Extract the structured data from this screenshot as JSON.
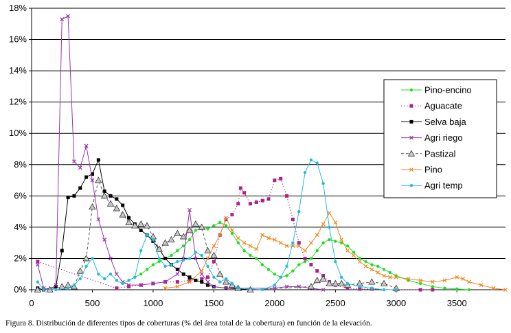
{
  "caption": "Figura 8.  Distribución de diferentes tipos de coberturas (% del área total de la cobertura) en función de la elevación.",
  "chart_data": {
    "type": "line",
    "title": "",
    "xlabel": "",
    "ylabel": "",
    "xlim": [
      0,
      3900
    ],
    "ylim": [
      0,
      18
    ],
    "x_ticks": [
      0,
      500,
      1000,
      1500,
      2000,
      2500,
      3000,
      3500
    ],
    "x_tick_labels": [
      "0",
      "500",
      "1000",
      "1500",
      "2000",
      "2500",
      "3000",
      "3500"
    ],
    "y_ticks": [
      0,
      2,
      4,
      6,
      8,
      10,
      12,
      14,
      16,
      18
    ],
    "y_tick_labels": [
      "0%",
      "2%",
      "4%",
      "6%",
      "8%",
      "10%",
      "12%",
      "14%",
      "16%",
      "18%"
    ],
    "grid": "horizontal",
    "legend_position": "right",
    "series": [
      {
        "name": "Pino-encino",
        "color": "#22dd22",
        "marker": "dot",
        "dash": "solid",
        "points": [
          [
            800,
            0.6
          ],
          [
            850,
            0.8
          ],
          [
            900,
            1.0
          ],
          [
            950,
            1.3
          ],
          [
            1000,
            1.6
          ],
          [
            1050,
            1.8
          ],
          [
            1100,
            2.0
          ],
          [
            1150,
            2.2
          ],
          [
            1200,
            2.5
          ],
          [
            1250,
            2.8
          ],
          [
            1300,
            3.2
          ],
          [
            1350,
            3.8
          ],
          [
            1400,
            3.9
          ],
          [
            1450,
            3.9
          ],
          [
            1500,
            4.1
          ],
          [
            1550,
            4.3
          ],
          [
            1600,
            4.1
          ],
          [
            1650,
            3.6
          ],
          [
            1700,
            3.0
          ],
          [
            1750,
            2.5
          ],
          [
            1800,
            2.2
          ],
          [
            1850,
            2.0
          ],
          [
            1900,
            1.6
          ],
          [
            1950,
            1.3
          ],
          [
            2000,
            1.0
          ],
          [
            2050,
            0.8
          ],
          [
            2100,
            0.9
          ],
          [
            2150,
            1.2
          ],
          [
            2200,
            1.6
          ],
          [
            2250,
            1.8
          ],
          [
            2300,
            2.0
          ],
          [
            2350,
            2.5
          ],
          [
            2400,
            3.0
          ],
          [
            2450,
            3.2
          ],
          [
            2500,
            3.1
          ],
          [
            2550,
            3.0
          ],
          [
            2600,
            2.8
          ],
          [
            2650,
            2.4
          ],
          [
            2700,
            2.0
          ],
          [
            2750,
            1.8
          ],
          [
            2800,
            1.6
          ],
          [
            2850,
            1.5
          ],
          [
            2900,
            1.3
          ],
          [
            2950,
            1.1
          ],
          [
            3000,
            0.9
          ],
          [
            3100,
            0.6
          ],
          [
            3200,
            0.4
          ],
          [
            3300,
            0.2
          ],
          [
            3400,
            0.1
          ],
          [
            3500,
            0.05
          ],
          [
            3600,
            0.0
          ]
        ]
      },
      {
        "name": "Aguacate",
        "color": "#aa2288",
        "marker": "square",
        "dash": "dot",
        "points": [
          [
            50,
            1.8
          ],
          [
            700,
            0.1
          ],
          [
            800,
            0.2
          ],
          [
            900,
            0.3
          ],
          [
            1000,
            0.4
          ],
          [
            1100,
            0.5
          ],
          [
            1200,
            0.5
          ],
          [
            1300,
            0.6
          ],
          [
            1400,
            0.7
          ],
          [
            1450,
            0.8
          ],
          [
            1500,
            1.8
          ],
          [
            1550,
            3.5
          ],
          [
            1600,
            4.5
          ],
          [
            1650,
            4.8
          ],
          [
            1700,
            5.5
          ],
          [
            1720,
            6.5
          ],
          [
            1750,
            6.2
          ],
          [
            1800,
            5.5
          ],
          [
            1850,
            5.6
          ],
          [
            1900,
            5.7
          ],
          [
            1950,
            5.8
          ],
          [
            2000,
            7.0
          ],
          [
            2050,
            7.1
          ],
          [
            2100,
            6.0
          ],
          [
            2150,
            4.5
          ],
          [
            2200,
            3.0
          ],
          [
            2250,
            2.0
          ],
          [
            2300,
            1.6
          ],
          [
            2350,
            1.2
          ],
          [
            2400,
            0.9
          ],
          [
            2450,
            0.5
          ],
          [
            2500,
            0.3
          ],
          [
            2600,
            0.1
          ],
          [
            2700,
            0.05
          ],
          [
            2800,
            0.05
          ],
          [
            3000,
            0.0
          ],
          [
            3200,
            0.0
          ],
          [
            3300,
            0.0
          ]
        ]
      },
      {
        "name": "Selva baja",
        "color": "#000000",
        "marker": "square",
        "dash": "solid",
        "points": [
          [
            50,
            0.1
          ],
          [
            100,
            0.0
          ],
          [
            200,
            0.2
          ],
          [
            250,
            2.5
          ],
          [
            300,
            5.9
          ],
          [
            350,
            6.0
          ],
          [
            400,
            6.5
          ],
          [
            450,
            7.2
          ],
          [
            500,
            7.4
          ],
          [
            550,
            8.3
          ],
          [
            600,
            6.3
          ],
          [
            650,
            6.0
          ],
          [
            700,
            5.8
          ],
          [
            750,
            5.4
          ],
          [
            800,
            4.6
          ],
          [
            850,
            4.2
          ],
          [
            900,
            3.8
          ],
          [
            950,
            3.5
          ],
          [
            1000,
            3.1
          ],
          [
            1050,
            2.6
          ],
          [
            1100,
            2.0
          ],
          [
            1150,
            1.6
          ],
          [
            1200,
            1.3
          ],
          [
            1250,
            1.0
          ],
          [
            1300,
            0.8
          ],
          [
            1350,
            0.6
          ],
          [
            1400,
            0.5
          ],
          [
            1450,
            0.3
          ],
          [
            1500,
            0.2
          ],
          [
            1600,
            0.1
          ],
          [
            1700,
            0.05
          ],
          [
            1800,
            0.0
          ]
        ]
      },
      {
        "name": "Agri riego",
        "color": "#9933aa",
        "marker": "x",
        "dash": "solid",
        "points": [
          [
            50,
            1.6
          ],
          [
            100,
            0.1
          ],
          [
            150,
            0.0
          ],
          [
            200,
            0.3
          ],
          [
            250,
            17.3
          ],
          [
            300,
            17.5
          ],
          [
            350,
            8.2
          ],
          [
            400,
            7.8
          ],
          [
            450,
            9.2
          ],
          [
            500,
            7.0
          ],
          [
            550,
            4.5
          ],
          [
            600,
            3.2
          ],
          [
            650,
            2.0
          ],
          [
            700,
            1.0
          ],
          [
            750,
            0.5
          ],
          [
            800,
            0.3
          ],
          [
            900,
            0.3
          ],
          [
            1000,
            0.4
          ],
          [
            1100,
            0.5
          ],
          [
            1200,
            1.0
          ],
          [
            1250,
            2.0
          ],
          [
            1300,
            5.1
          ],
          [
            1350,
            2.0
          ],
          [
            1400,
            1.0
          ],
          [
            1450,
            0.5
          ],
          [
            1500,
            0.2
          ],
          [
            1600,
            0.1
          ],
          [
            2000,
            0.1
          ],
          [
            2100,
            0.2
          ],
          [
            2200,
            0.2
          ],
          [
            2300,
            0.1
          ],
          [
            2400,
            0.0
          ]
        ]
      },
      {
        "name": "Pastizal",
        "color": "#555555",
        "marker": "triangle",
        "dash": "dash",
        "points": [
          [
            50,
            0.0
          ],
          [
            150,
            0.0
          ],
          [
            250,
            0.2
          ],
          [
            300,
            0.3
          ],
          [
            350,
            0.2
          ],
          [
            400,
            1.2
          ],
          [
            450,
            2.0
          ],
          [
            500,
            5.3
          ],
          [
            550,
            7.0
          ],
          [
            600,
            6.0
          ],
          [
            650,
            5.5
          ],
          [
            700,
            5.2
          ],
          [
            750,
            4.8
          ],
          [
            800,
            4.3
          ],
          [
            850,
            4.1
          ],
          [
            900,
            4.2
          ],
          [
            950,
            4.1
          ],
          [
            1000,
            3.4
          ],
          [
            1050,
            2.6
          ],
          [
            1100,
            3.0
          ],
          [
            1150,
            3.2
          ],
          [
            1200,
            3.6
          ],
          [
            1250,
            3.4
          ],
          [
            1300,
            3.8
          ],
          [
            1350,
            4.2
          ],
          [
            1400,
            4.0
          ],
          [
            1450,
            2.5
          ],
          [
            1500,
            2.2
          ],
          [
            1550,
            1.0
          ],
          [
            1600,
            0.5
          ],
          [
            1650,
            0.3
          ],
          [
            1700,
            0.1
          ],
          [
            1800,
            0.0
          ],
          [
            2300,
            0.2
          ],
          [
            2350,
            0.6
          ],
          [
            2400,
            0.7
          ],
          [
            2450,
            0.4
          ],
          [
            2500,
            0.4
          ],
          [
            2550,
            0.4
          ],
          [
            2600,
            0.3
          ],
          [
            2700,
            0.4
          ],
          [
            2800,
            0.5
          ],
          [
            2900,
            0.4
          ],
          [
            3000,
            0.1
          ]
        ]
      },
      {
        "name": "Pino",
        "color": "#ee8822",
        "marker": "x",
        "dash": "solid",
        "points": [
          [
            1100,
            0.1
          ],
          [
            1200,
            0.2
          ],
          [
            1300,
            0.5
          ],
          [
            1400,
            1.2
          ],
          [
            1450,
            2.0
          ],
          [
            1500,
            2.8
          ],
          [
            1550,
            3.5
          ],
          [
            1600,
            4.6
          ],
          [
            1650,
            3.8
          ],
          [
            1700,
            3.3
          ],
          [
            1750,
            3.0
          ],
          [
            1800,
            2.8
          ],
          [
            1850,
            2.6
          ],
          [
            1900,
            3.5
          ],
          [
            1950,
            3.3
          ],
          [
            2000,
            3.2
          ],
          [
            2050,
            3.0
          ],
          [
            2100,
            2.8
          ],
          [
            2150,
            2.8
          ],
          [
            2200,
            2.8
          ],
          [
            2250,
            2.5
          ],
          [
            2300,
            3.0
          ],
          [
            2350,
            3.5
          ],
          [
            2400,
            4.2
          ],
          [
            2450,
            4.9
          ],
          [
            2500,
            4.3
          ],
          [
            2550,
            3.2
          ],
          [
            2600,
            2.5
          ],
          [
            2650,
            2.2
          ],
          [
            2700,
            1.8
          ],
          [
            2750,
            1.5
          ],
          [
            2800,
            1.3
          ],
          [
            2850,
            1.1
          ],
          [
            2900,
            0.9
          ],
          [
            2950,
            0.8
          ],
          [
            3000,
            0.8
          ],
          [
            3100,
            0.7
          ],
          [
            3200,
            0.6
          ],
          [
            3300,
            0.5
          ],
          [
            3400,
            0.6
          ],
          [
            3500,
            0.8
          ],
          [
            3550,
            0.7
          ],
          [
            3600,
            0.5
          ],
          [
            3700,
            0.3
          ],
          [
            3800,
            0.1
          ],
          [
            3900,
            0.0
          ]
        ]
      },
      {
        "name": "Agri temp",
        "color": "#22bbdd",
        "marker": "dot",
        "dash": "solid",
        "points": [
          [
            50,
            0.5
          ],
          [
            100,
            0.0
          ],
          [
            200,
            0.0
          ],
          [
            300,
            0.1
          ],
          [
            350,
            0.3
          ],
          [
            400,
            0.7
          ],
          [
            450,
            1.5
          ],
          [
            500,
            2.0
          ],
          [
            550,
            1.0
          ],
          [
            600,
            0.7
          ],
          [
            650,
            1.0
          ],
          [
            700,
            0.6
          ],
          [
            750,
            0.4
          ],
          [
            800,
            0.6
          ],
          [
            850,
            0.8
          ],
          [
            900,
            2.5
          ],
          [
            950,
            3.5
          ],
          [
            1000,
            3.2
          ],
          [
            1050,
            2.0
          ],
          [
            1100,
            1.5
          ],
          [
            1150,
            1.6
          ],
          [
            1200,
            1.8
          ],
          [
            1250,
            1.9
          ],
          [
            1300,
            2.0
          ],
          [
            1350,
            2.4
          ],
          [
            1400,
            2.2
          ],
          [
            1450,
            1.5
          ],
          [
            1500,
            0.8
          ],
          [
            1550,
            0.5
          ],
          [
            1600,
            0.7
          ],
          [
            1650,
            0.4
          ],
          [
            1700,
            0.1
          ],
          [
            1900,
            0.0
          ],
          [
            2000,
            0.3
          ],
          [
            2050,
            0.8
          ],
          [
            2100,
            1.5
          ],
          [
            2150,
            3.0
          ],
          [
            2200,
            5.0
          ],
          [
            2250,
            7.5
          ],
          [
            2300,
            8.3
          ],
          [
            2350,
            8.1
          ],
          [
            2400,
            6.8
          ],
          [
            2450,
            4.0
          ],
          [
            2500,
            1.8
          ],
          [
            2550,
            0.8
          ],
          [
            2600,
            0.4
          ],
          [
            2700,
            0.2
          ],
          [
            2800,
            0.1
          ],
          [
            2900,
            0.0
          ],
          [
            3000,
            0.0
          ]
        ]
      }
    ]
  }
}
